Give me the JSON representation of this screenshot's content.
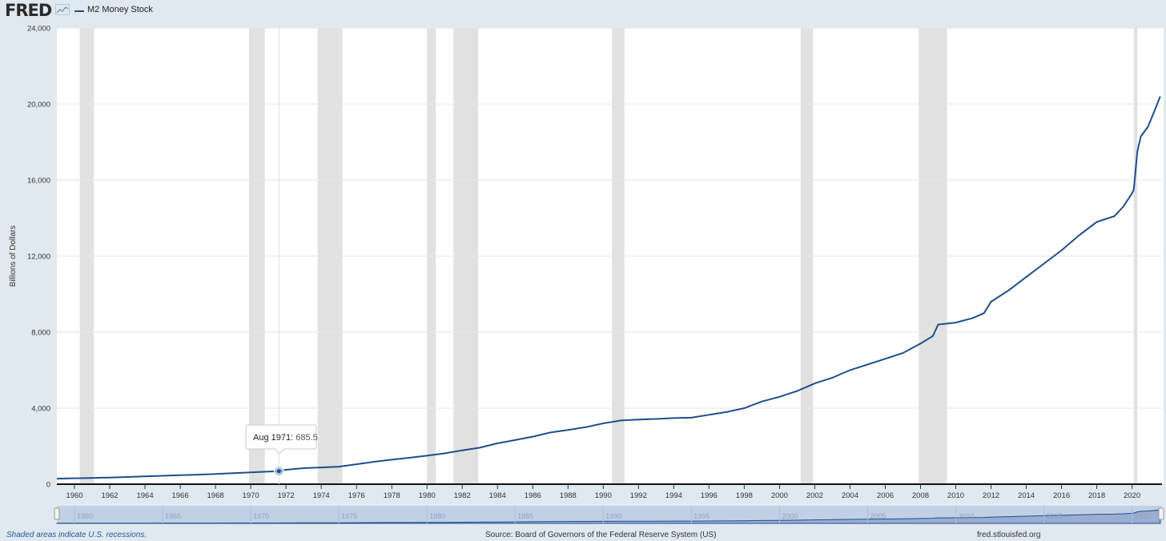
{
  "header": {
    "logo_text": "FRED",
    "logo_icon": "fred-sparkline-icon",
    "legend_label": "M2 Money Stock"
  },
  "tooltip": {
    "date": "Aug 1971",
    "value": "685.5",
    "x": 1971.6
  },
  "footer": {
    "note": "Shaded areas indicate U.S. recessions.",
    "source": "Source: Board of Governors of the Federal Reserve System (US)",
    "url": "fred.stlouisfed.org"
  },
  "colors": {
    "series": "#1f4e8c",
    "recession": "#e1e1e1",
    "background": "#e1e9f0",
    "plot": "#ffffff",
    "navigator_fill": "#7d97c4",
    "navigator_selected": "#c2d0e6"
  },
  "chart_data": {
    "type": "line",
    "title": "",
    "xlabel": "",
    "ylabel": "Billions of Dollars",
    "xlim": [
      1959,
      2021.7
    ],
    "ylim": [
      0,
      24000
    ],
    "grid": true,
    "legend_position": "top-left",
    "y_ticks": [
      0,
      4000,
      8000,
      12000,
      16000,
      20000,
      24000
    ],
    "y_tick_labels": [
      "0",
      "4,000",
      "8,000",
      "12,000",
      "16,000",
      "20,000",
      "24,000"
    ],
    "x_ticks": [
      1960,
      1962,
      1964,
      1966,
      1968,
      1970,
      1972,
      1974,
      1976,
      1978,
      1980,
      1982,
      1984,
      1986,
      1988,
      1990,
      1992,
      1994,
      1996,
      1998,
      2000,
      2002,
      2004,
      2006,
      2008,
      2010,
      2012,
      2014,
      2016,
      2018,
      2020
    ],
    "navigator_ticks": [
      1960,
      1965,
      1970,
      1975,
      1980,
      1985,
      1990,
      1995,
      2000,
      2005,
      2010,
      2015,
      2020
    ],
    "recessions": [
      [
        1960.3,
        1961.1
      ],
      [
        1969.9,
        1970.8
      ],
      [
        1973.8,
        1975.2
      ],
      [
        1980.0,
        1980.5
      ],
      [
        1981.5,
        1982.9
      ],
      [
        1990.5,
        1991.2
      ],
      [
        2001.2,
        2001.9
      ],
      [
        2007.9,
        2009.5
      ],
      [
        2020.1,
        2020.3
      ]
    ],
    "series": [
      {
        "name": "M2 Money Stock",
        "x": [
          1959.0,
          1960,
          1961,
          1962,
          1963,
          1964,
          1965,
          1966,
          1967,
          1968,
          1969,
          1970,
          1971,
          1971.6,
          1972,
          1973,
          1974,
          1975,
          1976,
          1977,
          1978,
          1979,
          1980,
          1981,
          1982,
          1983,
          1984,
          1985,
          1986,
          1987,
          1988,
          1989,
          1990,
          1991,
          1992,
          1993,
          1994,
          1995,
          1996,
          1997,
          1998,
          1999,
          2000,
          2001,
          2002,
          2003,
          2004,
          2005,
          2006,
          2007,
          2008,
          2008.7,
          2009,
          2010,
          2011,
          2011.6,
          2012,
          2013,
          2014,
          2015,
          2016,
          2017,
          2018,
          2019,
          2019.5,
          2020,
          2020.1,
          2020.3,
          2020.5,
          2020.9,
          2021.3,
          2021.6
        ],
        "y": [
          290,
          310,
          330,
          350,
          380,
          410,
          440,
          470,
          500,
          540,
          580,
          620,
          660,
          685.5,
          760,
          840,
          880,
          920,
          1050,
          1180,
          1290,
          1390,
          1500,
          1620,
          1780,
          1920,
          2150,
          2320,
          2500,
          2720,
          2850,
          3000,
          3200,
          3350,
          3400,
          3430,
          3480,
          3500,
          3650,
          3800,
          4000,
          4350,
          4600,
          4900,
          5300,
          5600,
          6000,
          6300,
          6600,
          6900,
          7400,
          7800,
          8400,
          8500,
          8750,
          9000,
          9600,
          10200,
          10900,
          11600,
          12300,
          13100,
          13800,
          14100,
          14600,
          15300,
          15500,
          17500,
          18300,
          18800,
          19700,
          20400
        ]
      }
    ]
  }
}
